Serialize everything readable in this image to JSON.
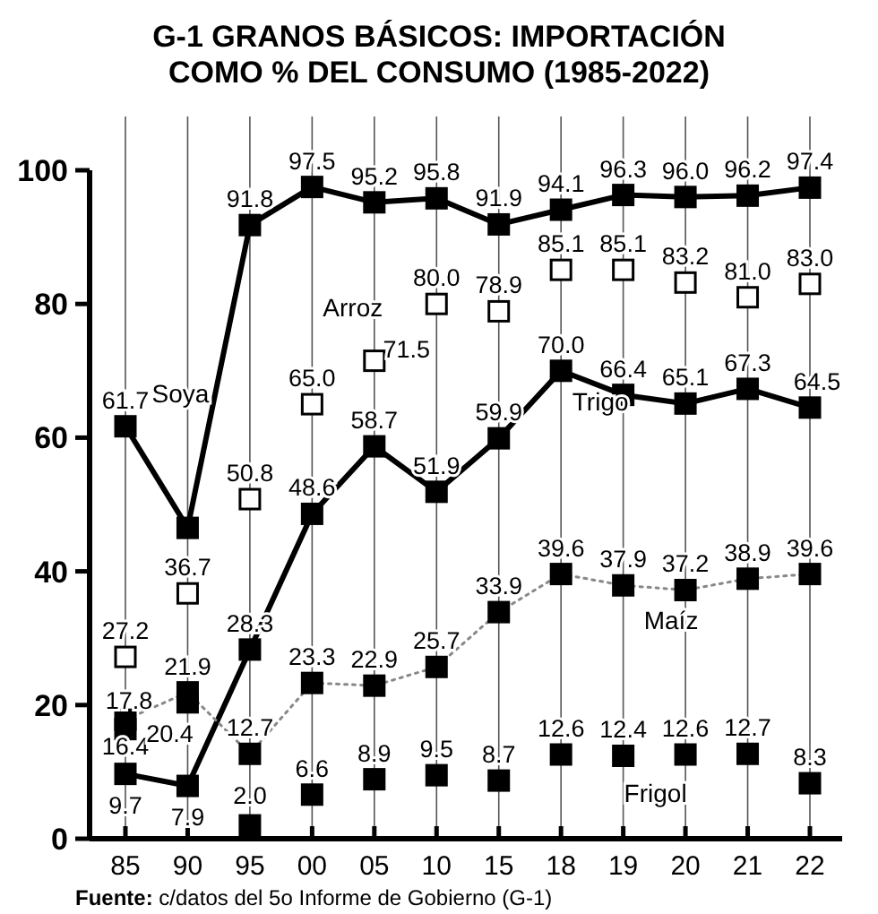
{
  "chart_data": {
    "type": "line",
    "title": "G-1 GRANOS BÁSICOS: IMPORTACIÓN COMO % DEL CONSUMO (1985-2022)",
    "categories": [
      "85",
      "90",
      "95",
      "00",
      "05",
      "10",
      "15",
      "18",
      "19",
      "20",
      "21",
      "22"
    ],
    "ylim": [
      0,
      100
    ],
    "yticks": [
      0,
      20,
      40,
      60,
      80,
      100
    ],
    "grid": "x",
    "marker": "square",
    "data_labels": true,
    "series": [
      {
        "name": "Soya",
        "color": "#000000",
        "line_style": "solid",
        "values": [
          61.7,
          46.5,
          91.8,
          97.5,
          95.2,
          95.8,
          91.9,
          94.1,
          96.3,
          96.0,
          96.2,
          97.4
        ],
        "value_labels": [
          "61.7",
          null,
          "91.8",
          "97.5",
          "95.2",
          "95.8",
          "91.9",
          "94.1",
          "96.3",
          "96.0",
          "96.2",
          "97.4"
        ]
      },
      {
        "name": "Arroz",
        "type": "scatter",
        "color": "#ffffff",
        "values": [
          27.2,
          36.7,
          50.8,
          65.0,
          71.5,
          80.0,
          78.9,
          85.1,
          85.1,
          83.2,
          81.0,
          83.0
        ],
        "value_labels": [
          "27.2",
          "36.7",
          "50.8",
          "65.0",
          "71.5",
          "80.0",
          "78.9",
          "85.1",
          "85.1",
          "83.2",
          "81.0",
          "83.0"
        ]
      },
      {
        "name": "Trigo",
        "color": "#000000",
        "line_style": "solid",
        "values": [
          9.7,
          7.9,
          28.3,
          48.6,
          58.7,
          51.9,
          59.9,
          70.0,
          66.4,
          65.1,
          67.3,
          64.5
        ],
        "value_labels": [
          "9.7",
          "7.9",
          "28.3",
          "48.6",
          "58.7",
          "51.9",
          "59.9",
          "70.0",
          "66.4",
          "65.1",
          "67.3",
          "64.5"
        ]
      },
      {
        "name": "Maíz",
        "color": "#888888",
        "line_style": "dotted",
        "values": [
          17.8,
          21.9,
          12.7,
          23.3,
          22.9,
          25.7,
          33.9,
          39.6,
          37.9,
          37.2,
          38.9,
          39.6
        ]
      },
      {
        "name": "Frigol",
        "type": "scatter",
        "color": "#000000",
        "values": [
          16.4,
          20.4,
          2.0,
          6.6,
          8.9,
          9.5,
          8.7,
          12.6,
          12.4,
          12.6,
          12.7,
          8.3
        ],
        "value_labels": [
          "16.4",
          "20.4",
          "2.0",
          "6.6",
          "8.9",
          "9.5",
          "8.7",
          "12.6",
          "12.4",
          "12.6",
          "12.7",
          "8.3"
        ]
      }
    ],
    "annotations": [
      "Fuente: c/datos del 5o Informe de Gobierno (G-1)"
    ]
  }
}
